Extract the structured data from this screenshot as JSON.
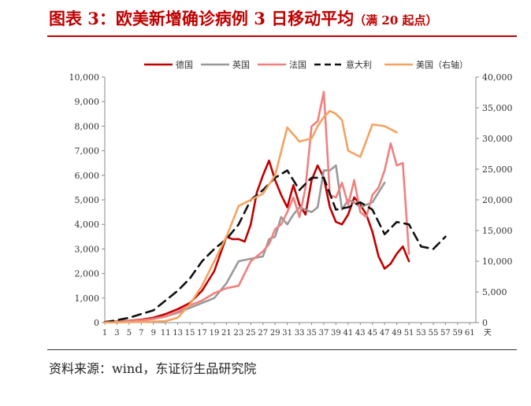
{
  "header": {
    "title": "图表 3：欧美新增确诊病例 3 日移动平均",
    "subtitle": "（满 20 起点）"
  },
  "footer": {
    "source": "资料来源：wind，东证衍生品研究院"
  },
  "chart_data": {
    "type": "line",
    "x_unit": "天",
    "x_ticks": [
      1,
      3,
      5,
      7,
      9,
      11,
      13,
      15,
      17,
      19,
      21,
      23,
      25,
      27,
      29,
      31,
      33,
      35,
      37,
      39,
      41,
      43,
      45,
      47,
      49,
      51,
      53,
      55,
      57,
      59,
      61
    ],
    "x_range": [
      1,
      62
    ],
    "y_left": {
      "range": [
        0,
        10000
      ],
      "ticks": [
        0,
        1000,
        2000,
        3000,
        4000,
        5000,
        6000,
        7000,
        8000,
        9000,
        10000
      ],
      "tick_labels": [
        "0",
        "1,000",
        "2,000",
        "3,000",
        "4,000",
        "5,000",
        "6,000",
        "7,000",
        "8,000",
        "9,000",
        "10,000"
      ]
    },
    "y_right": {
      "range": [
        0,
        40000
      ],
      "ticks": [
        0,
        5000,
        10000,
        15000,
        20000,
        25000,
        30000,
        35000,
        40000
      ],
      "tick_labels": [
        "0",
        "5,000",
        "10,000",
        "15,000",
        "20,000",
        "25,000",
        "30,000",
        "35,000",
        "40,000"
      ]
    },
    "legend_position": "top",
    "series": [
      {
        "name": "德国",
        "axis": "left",
        "color": "#c00000",
        "style": "solid",
        "x": [
          1,
          3,
          5,
          7,
          9,
          11,
          13,
          15,
          17,
          19,
          20,
          21,
          22,
          23,
          24,
          25,
          26,
          27,
          28,
          29,
          30,
          31,
          32,
          33,
          34,
          35,
          36,
          37,
          38,
          39,
          40,
          41,
          42,
          43,
          44,
          45,
          46,
          47,
          48,
          49,
          50,
          51
        ],
        "y": [
          30,
          50,
          80,
          120,
          200,
          350,
          550,
          800,
          1300,
          2100,
          2800,
          3500,
          3400,
          3400,
          3300,
          4000,
          5300,
          6000,
          6600,
          5800,
          5200,
          4700,
          5600,
          4800,
          4400,
          5800,
          6400,
          5900,
          4700,
          4100,
          4000,
          4400,
          5100,
          4800,
          4400,
          3700,
          2700,
          2200,
          2400,
          2800,
          3100,
          2500
        ]
      },
      {
        "name": "英国",
        "axis": "left",
        "color": "#999999",
        "style": "solid",
        "x": [
          1,
          3,
          5,
          7,
          9,
          11,
          13,
          15,
          17,
          19,
          21,
          23,
          25,
          27,
          28,
          29,
          30,
          31,
          32,
          33,
          34,
          35,
          36,
          37,
          38,
          39,
          40,
          41,
          42,
          43,
          44,
          45,
          46,
          47
        ],
        "y": [
          20,
          50,
          70,
          90,
          150,
          250,
          400,
          600,
          800,
          1000,
          1600,
          2500,
          2600,
          2700,
          3400,
          3500,
          4300,
          4000,
          4400,
          4700,
          4600,
          4500,
          4700,
          6200,
          6200,
          6400,
          4600,
          5000,
          4900,
          4700,
          4800,
          4900,
          5300,
          5700
        ]
      },
      {
        "name": "法国",
        "axis": "left",
        "color": "#f08080",
        "style": "solid",
        "x": [
          1,
          3,
          5,
          7,
          9,
          11,
          13,
          15,
          17,
          19,
          21,
          23,
          25,
          27,
          28,
          29,
          30,
          31,
          32,
          33,
          34,
          35,
          36,
          37,
          38,
          39,
          40,
          41,
          42,
          43,
          44,
          45,
          46,
          47,
          48,
          49,
          50,
          51
        ],
        "y": [
          20,
          40,
          60,
          100,
          150,
          250,
          450,
          700,
          900,
          1200,
          1400,
          1500,
          2500,
          2900,
          3200,
          3800,
          4000,
          4500,
          5100,
          4300,
          5500,
          8000,
          8200,
          9400,
          5200,
          5100,
          5700,
          4800,
          5800,
          4500,
          4300,
          5200,
          5500,
          6200,
          7300,
          6400,
          6500,
          2800
        ]
      },
      {
        "name": "意大利",
        "axis": "left",
        "color": "#111111",
        "style": "dashed",
        "x": [
          1,
          3,
          5,
          7,
          9,
          11,
          13,
          15,
          17,
          19,
          21,
          23,
          25,
          27,
          29,
          31,
          33,
          35,
          37,
          39,
          41,
          43,
          45,
          47,
          49,
          51,
          53,
          55,
          57
        ],
        "y": [
          20,
          100,
          200,
          350,
          500,
          900,
          1300,
          1800,
          2500,
          3000,
          3400,
          4000,
          5000,
          5400,
          5900,
          6200,
          5400,
          5900,
          5900,
          4600,
          4700,
          4900,
          4600,
          3600,
          4100,
          4000,
          3100,
          3000,
          3500
        ]
      },
      {
        "name": "美国（右轴）",
        "axis": "right",
        "color": "#f4a261",
        "style": "solid",
        "x": [
          1,
          3,
          5,
          7,
          9,
          11,
          13,
          15,
          17,
          19,
          21,
          23,
          25,
          27,
          29,
          31,
          33,
          35,
          36,
          37,
          38,
          39,
          40,
          41,
          43,
          45,
          47,
          48,
          49
        ],
        "y": [
          20,
          40,
          70,
          100,
          150,
          250,
          800,
          3000,
          6000,
          10000,
          14000,
          19000,
          20000,
          21000,
          24000,
          31800,
          29500,
          30000,
          32000,
          33500,
          34500,
          34000,
          33000,
          28000,
          27000,
          32300,
          32000,
          31500,
          31000
        ]
      }
    ]
  }
}
